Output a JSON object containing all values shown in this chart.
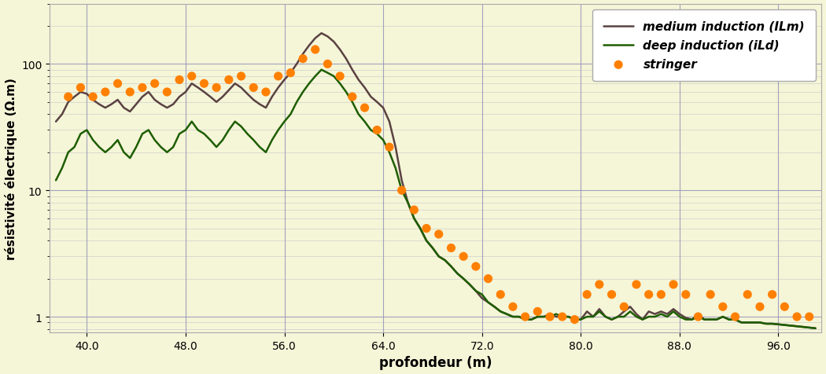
{
  "background_color": "#f5f5d8",
  "plot_bg_color": "#f5f5d8",
  "xlabel": "profondeur (m)",
  "ylabel": "résistivité électrique (Ω.m)",
  "xlim": [
    37.0,
    99.5
  ],
  "ylim": [
    0.75,
    300
  ],
  "xticks": [
    40.0,
    48.0,
    56.0,
    64.0,
    72.0,
    80.0,
    88.0,
    96.0
  ],
  "grid_color": "#9999bb",
  "legend_labels": [
    "stringer",
    "deep induction (iLd)",
    "medium induction (ILm)"
  ],
  "stringer_color": "#FF8000",
  "deep_color": "#1e5e00",
  "medium_color": "#5a4242",
  "deep_x": [
    37.5,
    38.0,
    38.5,
    39.0,
    39.5,
    40.0,
    40.5,
    41.0,
    41.5,
    42.0,
    42.5,
    43.0,
    43.5,
    44.0,
    44.5,
    45.0,
    45.5,
    46.0,
    46.5,
    47.0,
    47.5,
    48.0,
    48.5,
    49.0,
    49.5,
    50.0,
    50.5,
    51.0,
    51.5,
    52.0,
    52.5,
    53.0,
    53.5,
    54.0,
    54.5,
    55.0,
    55.5,
    56.0,
    56.5,
    57.0,
    57.5,
    58.0,
    58.5,
    59.0,
    59.5,
    60.0,
    60.5,
    61.0,
    61.5,
    62.0,
    62.5,
    63.0,
    63.5,
    64.0,
    64.5,
    65.0,
    65.5,
    66.0,
    66.5,
    67.0,
    67.5,
    68.0,
    68.5,
    69.0,
    69.5,
    70.0,
    70.5,
    71.0,
    71.5,
    72.0,
    72.5,
    73.0,
    73.5,
    74.0,
    74.5,
    75.0,
    75.5,
    76.0,
    76.5,
    77.0,
    77.5,
    78.0,
    78.5,
    79.0,
    79.5,
    80.0,
    80.5,
    81.0,
    81.5,
    82.0,
    82.5,
    83.0,
    83.5,
    84.0,
    84.5,
    85.0,
    85.5,
    86.0,
    86.5,
    87.0,
    87.5,
    88.0,
    88.5,
    89.0,
    89.5,
    90.0,
    90.5,
    91.0,
    91.5,
    92.0,
    92.5,
    93.0,
    93.5,
    94.0,
    94.5,
    95.0,
    95.5,
    96.0,
    96.5,
    97.0,
    97.5,
    98.0,
    98.5,
    99.0
  ],
  "deep_y": [
    12.0,
    15.0,
    20.0,
    22.0,
    28.0,
    30.0,
    25.0,
    22.0,
    20.0,
    22.0,
    25.0,
    20.0,
    18.0,
    22.0,
    28.0,
    30.0,
    25.0,
    22.0,
    20.0,
    22.0,
    28.0,
    30.0,
    35.0,
    30.0,
    28.0,
    25.0,
    22.0,
    25.0,
    30.0,
    35.0,
    32.0,
    28.0,
    25.0,
    22.0,
    20.0,
    25.0,
    30.0,
    35.0,
    40.0,
    50.0,
    60.0,
    70.0,
    80.0,
    90.0,
    85.0,
    80.0,
    70.0,
    60.0,
    50.0,
    40.0,
    35.0,
    30.0,
    28.0,
    25.0,
    20.0,
    15.0,
    10.0,
    8.0,
    6.0,
    5.0,
    4.0,
    3.5,
    3.0,
    2.8,
    2.5,
    2.2,
    2.0,
    1.8,
    1.6,
    1.5,
    1.3,
    1.2,
    1.1,
    1.05,
    1.0,
    1.0,
    0.95,
    0.95,
    1.0,
    1.0,
    1.0,
    1.05,
    1.0,
    1.0,
    0.95,
    0.95,
    1.0,
    1.0,
    1.1,
    1.0,
    0.95,
    1.0,
    1.0,
    1.1,
    1.0,
    0.95,
    1.0,
    1.0,
    1.05,
    1.0,
    1.1,
    1.0,
    0.95,
    0.95,
    1.0,
    0.95,
    0.95,
    0.95,
    1.0,
    0.95,
    0.95,
    0.9,
    0.9,
    0.9,
    0.9,
    0.88,
    0.88,
    0.87,
    0.86,
    0.85,
    0.84,
    0.83,
    0.82,
    0.81
  ],
  "medium_x": [
    37.5,
    38.0,
    38.5,
    39.0,
    39.5,
    40.0,
    40.5,
    41.0,
    41.5,
    42.0,
    42.5,
    43.0,
    43.5,
    44.0,
    44.5,
    45.0,
    45.5,
    46.0,
    46.5,
    47.0,
    47.5,
    48.0,
    48.5,
    49.0,
    49.5,
    50.0,
    50.5,
    51.0,
    51.5,
    52.0,
    52.5,
    53.0,
    53.5,
    54.0,
    54.5,
    55.0,
    55.5,
    56.0,
    56.5,
    57.0,
    57.5,
    58.0,
    58.5,
    59.0,
    59.5,
    60.0,
    60.5,
    61.0,
    61.5,
    62.0,
    62.5,
    63.0,
    63.5,
    64.0,
    64.5,
    65.0,
    65.5,
    66.0,
    66.5,
    67.0,
    67.5,
    68.0,
    68.5,
    69.0,
    69.5,
    70.0,
    70.5,
    71.0,
    71.5,
    72.0,
    72.5,
    73.0,
    73.5,
    74.0,
    74.5,
    75.0,
    75.5,
    76.0,
    76.5,
    77.0,
    77.5,
    78.0,
    78.5,
    79.0,
    79.5,
    80.0,
    80.5,
    81.0,
    81.5,
    82.0,
    82.5,
    83.0,
    83.5,
    84.0,
    84.5,
    85.0,
    85.5,
    86.0,
    86.5,
    87.0,
    87.5,
    88.0,
    88.5,
    89.0,
    89.5,
    90.0,
    90.5,
    91.0,
    91.5,
    92.0,
    92.5,
    93.0,
    93.5,
    94.0,
    94.5,
    95.0,
    95.5,
    96.0,
    96.5,
    97.0,
    97.5,
    98.0,
    98.5,
    99.0
  ],
  "medium_y": [
    35.0,
    40.0,
    50.0,
    55.0,
    60.0,
    58.0,
    52.0,
    48.0,
    45.0,
    48.0,
    52.0,
    45.0,
    42.0,
    48.0,
    55.0,
    60.0,
    52.0,
    48.0,
    45.0,
    48.0,
    55.0,
    60.0,
    70.0,
    65.0,
    60.0,
    55.0,
    50.0,
    55.0,
    62.0,
    70.0,
    65.0,
    58.0,
    52.0,
    48.0,
    45.0,
    55.0,
    65.0,
    75.0,
    85.0,
    100.0,
    120.0,
    140.0,
    160.0,
    175.0,
    165.0,
    150.0,
    130.0,
    110.0,
    90.0,
    75.0,
    65.0,
    55.0,
    50.0,
    45.0,
    35.0,
    22.0,
    12.0,
    8.0,
    6.0,
    5.0,
    4.0,
    3.5,
    3.0,
    2.8,
    2.5,
    2.2,
    2.0,
    1.8,
    1.6,
    1.4,
    1.3,
    1.2,
    1.1,
    1.05,
    1.0,
    1.0,
    0.95,
    0.95,
    1.0,
    1.0,
    1.05,
    1.0,
    1.0,
    1.0,
    0.95,
    0.95,
    1.1,
    1.0,
    1.15,
    1.0,
    0.95,
    1.0,
    1.1,
    1.2,
    1.05,
    0.95,
    1.1,
    1.05,
    1.1,
    1.05,
    1.15,
    1.05,
    0.98,
    0.95,
    1.05,
    0.95,
    0.95,
    0.95,
    1.0,
    0.95,
    0.95,
    0.9,
    0.9,
    0.9,
    0.9,
    0.88,
    0.88,
    0.87,
    0.86,
    0.85,
    0.84,
    0.83,
    0.82,
    0.81
  ],
  "stringer_x": [
    38.5,
    39.5,
    40.5,
    41.5,
    42.5,
    43.5,
    44.5,
    45.5,
    46.5,
    47.5,
    48.5,
    49.5,
    50.5,
    51.5,
    52.5,
    53.5,
    54.5,
    55.5,
    56.5,
    57.5,
    58.5,
    59.5,
    60.5,
    61.5,
    62.5,
    63.5,
    64.5,
    65.5,
    66.5,
    67.5,
    68.5,
    69.5,
    70.5,
    71.5,
    72.5,
    73.5,
    74.5,
    75.5,
    76.5,
    77.5,
    78.5,
    79.5,
    80.5,
    81.5,
    82.5,
    83.5,
    84.5,
    85.5,
    86.5,
    87.5,
    88.5,
    89.5,
    90.5,
    91.5,
    92.5,
    93.5,
    94.5,
    95.5,
    96.5,
    97.5,
    98.5
  ],
  "stringer_y": [
    55.0,
    65.0,
    55.0,
    60.0,
    70.0,
    60.0,
    65.0,
    70.0,
    60.0,
    75.0,
    80.0,
    70.0,
    65.0,
    75.0,
    80.0,
    65.0,
    60.0,
    80.0,
    85.0,
    110.0,
    130.0,
    100.0,
    80.0,
    55.0,
    45.0,
    30.0,
    22.0,
    10.0,
    7.0,
    5.0,
    4.5,
    3.5,
    3.0,
    2.5,
    2.0,
    1.5,
    1.2,
    1.0,
    1.1,
    1.0,
    1.0,
    0.95,
    1.5,
    1.8,
    1.5,
    1.2,
    1.8,
    1.5,
    1.5,
    1.8,
    1.5,
    1.0,
    1.5,
    1.2,
    1.0,
    1.5,
    1.2,
    1.5,
    1.2,
    1.0,
    1.0
  ]
}
